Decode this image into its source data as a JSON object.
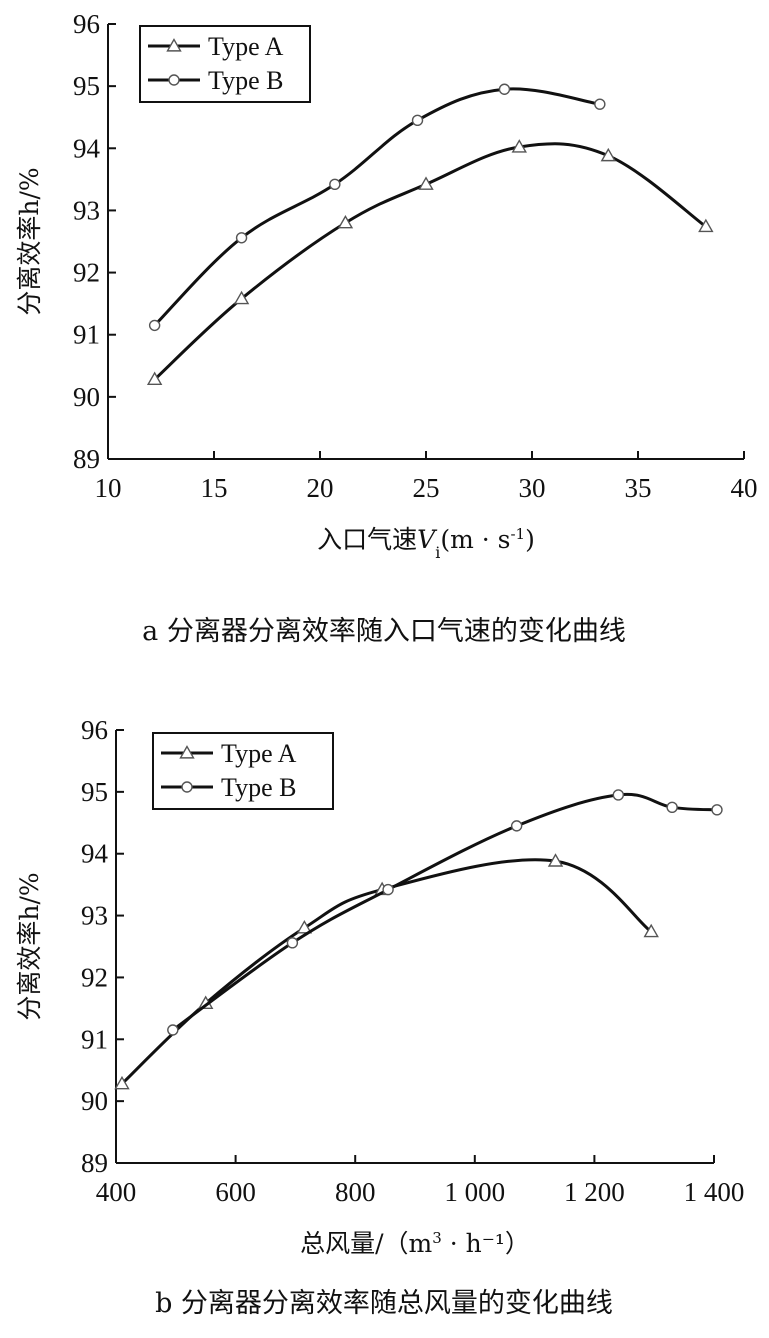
{
  "chart_data": [
    {
      "type": "line",
      "xlabel_main": "入口气速",
      "xlabel_var": "V",
      "xlabel_sub": "i",
      "xlabel_unit": "(m · s",
      "xlabel_unit_sup": "-1",
      "xlabel_unit_close": ")",
      "ylabel": "分离效率h/%",
      "caption": "a 分离器分离效率随入口气速的变化曲线",
      "xlim": [
        10,
        40
      ],
      "ylim": [
        89,
        96
      ],
      "xticks": [
        10,
        15,
        20,
        25,
        30,
        35,
        40
      ],
      "xtick_labels": [
        "10",
        "15",
        "20",
        "25",
        "30",
        "35",
        "40"
      ],
      "yticks": [
        89,
        90,
        91,
        92,
        93,
        94,
        95,
        96
      ],
      "ytick_labels": [
        "89",
        "90",
        "91",
        "92",
        "93",
        "94",
        "95",
        "96"
      ],
      "legend_position": "top-left",
      "series": [
        {
          "name": "Type A",
          "marker": "triangle",
          "x": [
            12.2,
            16.3,
            21.2,
            25.0,
            29.4,
            33.6,
            38.2
          ],
          "y": [
            90.28,
            91.58,
            92.8,
            93.42,
            94.02,
            93.88,
            92.74
          ]
        },
        {
          "name": "Type B",
          "marker": "circle",
          "x": [
            12.2,
            16.3,
            20.7,
            24.6,
            28.7,
            33.2
          ],
          "y": [
            91.15,
            92.56,
            93.42,
            94.45,
            94.95,
            94.71
          ]
        }
      ]
    },
    {
      "type": "line",
      "xlabel_main": "总风量/（",
      "xlabel_var": "",
      "xlabel_sub": "",
      "xlabel_unit": "m",
      "xlabel_unit_sup": "3",
      "xlabel_unit_close": " · h⁻¹）",
      "ylabel": "分离效率h/%",
      "caption": "b 分离器分离效率随总风量的变化曲线",
      "xlim": [
        400,
        1400
      ],
      "ylim": [
        89,
        96
      ],
      "xticks": [
        400,
        600,
        800,
        1000,
        1200,
        1400
      ],
      "xtick_labels": [
        "400",
        "600",
        "800",
        "1 000",
        "1 200",
        "1 400"
      ],
      "yticks": [
        89,
        90,
        91,
        92,
        93,
        94,
        95,
        96
      ],
      "ytick_labels": [
        "89",
        "90",
        "91",
        "92",
        "93",
        "94",
        "95",
        "96"
      ],
      "legend_position": "top-left",
      "series": [
        {
          "name": "Type A",
          "marker": "triangle",
          "x": [
            410,
            550,
            715,
            845,
            1135,
            1295
          ],
          "y": [
            90.28,
            91.58,
            92.8,
            93.42,
            93.88,
            92.74
          ]
        },
        {
          "name": "Type B",
          "marker": "circle",
          "x": [
            495,
            695,
            855,
            1070,
            1240,
            1330,
            1405
          ],
          "y": [
            91.15,
            92.56,
            93.42,
            94.45,
            94.95,
            94.75,
            94.71
          ]
        }
      ]
    }
  ]
}
